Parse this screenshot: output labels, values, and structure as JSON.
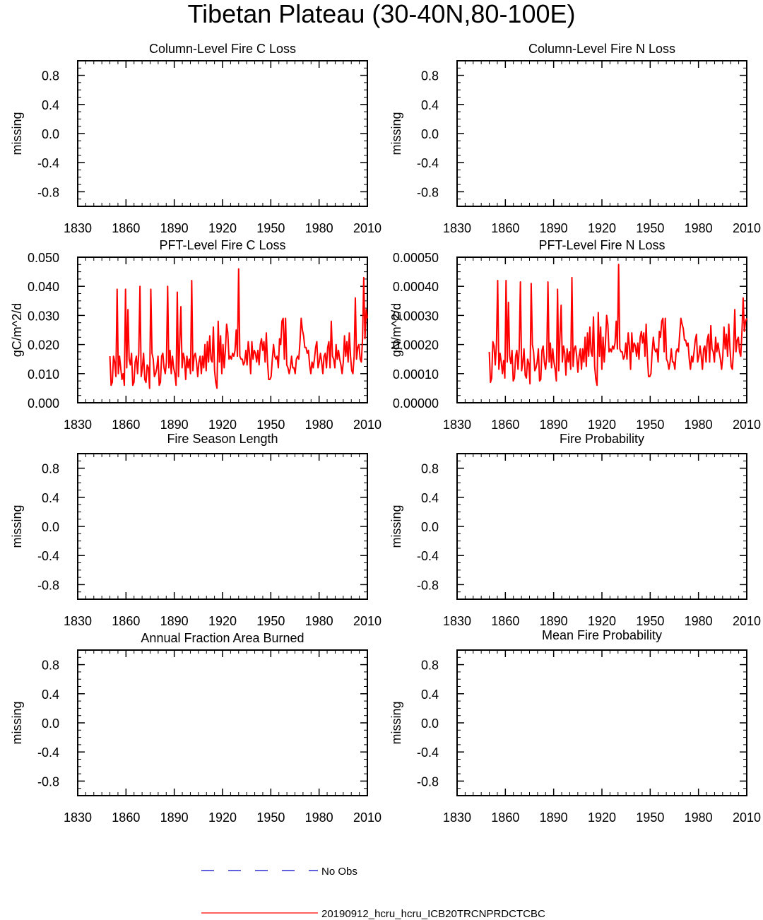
{
  "title": "Tibetan Plateau (30-40N,80-100E)",
  "colors": {
    "model": "#ff0000",
    "obs": "#0000cc",
    "axis": "#000000"
  },
  "legend": {
    "obs_label": "No Obs",
    "model_label": "20190912_hcru_hcru_ICB20TRCNPRDCTCBC"
  },
  "chart_data": [
    {
      "type": "line",
      "title": "Column-Level Fire C Loss",
      "ylabel": "missing",
      "xlabel": "",
      "xlim": [
        1830,
        2010
      ],
      "ylim": [
        -1,
        1
      ],
      "xticks": [
        "1830",
        "1860",
        "1890",
        "1920",
        "1950",
        "1980",
        "2010"
      ],
      "yticks": [
        "0.8",
        "0.4",
        "0.0",
        "-0.4",
        "-0.8"
      ],
      "series": []
    },
    {
      "type": "line",
      "title": "Column-Level Fire N Loss",
      "ylabel": "missing",
      "xlabel": "",
      "xlim": [
        1830,
        2010
      ],
      "ylim": [
        -1,
        1
      ],
      "xticks": [
        "1830",
        "1860",
        "1890",
        "1920",
        "1950",
        "1980",
        "2010"
      ],
      "yticks": [
        "0.8",
        "0.4",
        "0.0",
        "-0.4",
        "-0.8"
      ],
      "series": []
    },
    {
      "type": "line",
      "title": "PFT-Level Fire C Loss",
      "ylabel": "gC/m^2/d",
      "xlabel": "",
      "xlim": [
        1830,
        2010
      ],
      "ylim": [
        0,
        0.05
      ],
      "xticks": [
        "1830",
        "1860",
        "1890",
        "1920",
        "1950",
        "1980",
        "2010"
      ],
      "yticks": [
        "0.050",
        "0.040",
        "0.030",
        "0.020",
        "0.010",
        "0.000"
      ],
      "x_start": 1850,
      "series": [
        {
          "name": "20190912_hcru_hcru_ICB20TRCNPRDCTCBC",
          "values": [
            0.016,
            0.006,
            0.007,
            0.016,
            0.014,
            0.009,
            0.039,
            0.01,
            0.016,
            0.012,
            0.008,
            0.01,
            0.006,
            0.039,
            0.012,
            0.032,
            0.015,
            0.013,
            0.017,
            0.006,
            0.007,
            0.014,
            0.016,
            0.01,
            0.017,
            0.04,
            0.009,
            0.012,
            0.017,
            0.008,
            0.007,
            0.013,
            0.012,
            0.005,
            0.039,
            0.017,
            0.015,
            0.009,
            0.01,
            0.012,
            0.016,
            0.006,
            0.007,
            0.016,
            0.017,
            0.012,
            0.01,
            0.014,
            0.04,
            0.012,
            0.018,
            0.01,
            0.016,
            0.012,
            0.01,
            0.006,
            0.038,
            0.009,
            0.02,
            0.033,
            0.012,
            0.017,
            0.015,
            0.008,
            0.016,
            0.012,
            0.015,
            0.01,
            0.042,
            0.011,
            0.016,
            0.017,
            0.014,
            0.009,
            0.014,
            0.016,
            0.01,
            0.016,
            0.012,
            0.02,
            0.011,
            0.021,
            0.014,
            0.023,
            0.015,
            0.014,
            0.026,
            0.011,
            0.007,
            0.005,
            0.028,
            0.014,
            0.023,
            0.01,
            0.02,
            0.012,
            0.018,
            0.027,
            0.024,
            0.015,
            0.016,
            0.015,
            0.017,
            0.016,
            0.018,
            0.025,
            0.016,
            0.046,
            0.016,
            0.015,
            0.015,
            0.013,
            0.014,
            0.018,
            0.013,
            0.021,
            0.017,
            0.01,
            0.021,
            0.015,
            0.018,
            0.017,
            0.014,
            0.018,
            0.013,
            0.02,
            0.022,
            0.018,
            0.021,
            0.014,
            0.024,
            0.014,
            0.008,
            0.008,
            0.009,
            0.015,
            0.02,
            0.016,
            0.015,
            0.016,
            0.012,
            0.022,
            0.02,
            0.028,
            0.029,
            0.015,
            0.029,
            0.013,
            0.012,
            0.01,
            0.012,
            0.016,
            0.012,
            0.012,
            0.01,
            0.015,
            0.016,
            0.015,
            0.021,
            0.029,
            0.025,
            0.023,
            0.019,
            0.019,
            0.017,
            0.018,
            0.013,
            0.01,
            0.014,
            0.012,
            0.015,
            0.019,
            0.021,
            0.012,
            0.014,
            0.017,
            0.014,
            0.01,
            0.016,
            0.017,
            0.012,
            0.019,
            0.021,
            0.012,
            0.028,
            0.016,
            0.015,
            0.012,
            0.02,
            0.015,
            0.018,
            0.015,
            0.013,
            0.01,
            0.014,
            0.023,
            0.016,
            0.021,
            0.014,
            0.024,
            0.016,
            0.011,
            0.01,
            0.016,
            0.036,
            0.015,
            0.019,
            0.02,
            0.015,
            0.014,
            0.022,
            0.043,
            0.022,
            0.032,
            0.029
          ]
        }
      ]
    },
    {
      "type": "line",
      "title": "PFT-Level Fire N Loss",
      "ylabel": "gN/m^2/d",
      "xlabel": "",
      "xlim": [
        1830,
        2010
      ],
      "ylim": [
        0,
        0.0005
      ],
      "xticks": [
        "1830",
        "1860",
        "1890",
        "1920",
        "1950",
        "1980",
        "2010"
      ],
      "yticks": [
        "0.00050",
        "0.00040",
        "0.00030",
        "0.00020",
        "0.00010",
        "0.00000"
      ],
      "x_start": 1850,
      "series": [
        {
          "name": "20190912_hcru_hcru_ICB20TRCNPRDCTCBC",
          "values": [
            0.000175,
            7e-05,
            8.5e-05,
            0.00021,
            0.000195,
            0.00013,
            0.0002,
            0.00042,
            0.000115,
            0.00017,
            0.00014,
            0.0001,
            0.000145,
            8.5e-05,
            0.00042,
            0.00014,
            0.000345,
            0.00016,
            0.000135,
            0.00018,
            7.5e-05,
            8.5e-05,
            0.00016,
            0.00018,
            0.000115,
            0.000185,
            0.000415,
            0.00011,
            0.00014,
            0.000185,
            9.5e-05,
            8.5e-05,
            0.00015,
            0.000135,
            6.5e-05,
            0.00041,
            0.0002,
            0.000175,
            0.00011,
            0.00012,
            0.00014,
            0.000185,
            7.5e-05,
            8e-05,
            0.00018,
            0.000195,
            0.00014,
            0.000115,
            0.00016,
            0.000415,
            0.00014,
            0.000205,
            0.00012,
            0.000185,
            0.00014,
            0.000115,
            7.5e-05,
            0.00039,
            0.00011,
            0.000225,
            0.000335,
            0.00014,
            0.000195,
            0.00017,
            9.5e-05,
            0.000185,
            0.00014,
            0.000175,
            0.000115,
            0.00043,
            0.000125,
            0.000185,
            0.000195,
            0.00016,
            0.000105,
            0.00016,
            0.000185,
            0.000115,
            0.000185,
            0.00014,
            0.000225,
            0.000125,
            0.00024,
            0.00016,
            0.00026,
            0.000175,
            0.00016,
            0.000295,
            0.000125,
            8e-05,
            6e-05,
            0.00031,
            0.00016,
            0.00026,
            0.000115,
            0.000225,
            0.00014,
            0.000205,
            0.0003,
            0.00027,
            0.000175,
            0.000185,
            0.000175,
            0.000195,
            0.000185,
            0.000205,
            0.00028,
            0.000185,
            0.000475,
            0.000185,
            0.000175,
            0.000175,
            0.00015,
            0.00016,
            0.000205,
            0.00015,
            0.00024,
            0.000195,
            0.000115,
            0.00024,
            0.000175,
            0.000205,
            0.000195,
            0.00016,
            0.000205,
            0.00015,
            0.000225,
            0.000245,
            0.000205,
            0.00024,
            0.00016,
            0.00027,
            0.00016,
            9e-05,
            9e-05,
            0.0001,
            0.000175,
            0.000225,
            0.000185,
            0.000175,
            0.000185,
            0.00014,
            0.000245,
            0.000225,
            0.00028,
            0.00029,
            0.000175,
            0.00029,
            0.00015,
            0.00014,
            0.000115,
            0.00014,
            0.000185,
            0.00014,
            0.00014,
            0.000115,
            0.000175,
            0.000185,
            0.000175,
            0.000235,
            0.00029,
            0.00027,
            0.000255,
            0.000215,
            0.000215,
            0.000195,
            0.000205,
            0.00015,
            0.000115,
            0.00016,
            0.00014,
            0.000175,
            0.000215,
            0.000235,
            0.00014,
            0.00016,
            0.000195,
            0.00016,
            0.000115,
            0.000185,
            0.000195,
            0.00014,
            0.000215,
            0.000235,
            0.00014,
            0.000265,
            0.000185,
            0.000175,
            0.00014,
            0.000225,
            0.000175,
            0.000205,
            0.000175,
            0.00015,
            0.000115,
            0.00016,
            0.00026,
            0.000185,
            0.000235,
            0.00016,
            0.00027,
            0.000185,
            0.000125,
            0.000115,
            0.000185,
            0.00032,
            0.000175,
            0.000215,
            0.000225,
            0.000175,
            0.00016,
            0.000245,
            0.00036,
            0.000245,
            0.00028,
            0.00029
          ]
        }
      ]
    },
    {
      "type": "line",
      "title": "Fire Season Length",
      "ylabel": "missing",
      "xlabel": "",
      "xlim": [
        1830,
        2010
      ],
      "ylim": [
        -1,
        1
      ],
      "xticks": [
        "1830",
        "1860",
        "1890",
        "1920",
        "1950",
        "1980",
        "2010"
      ],
      "yticks": [
        "0.8",
        "0.4",
        "0.0",
        "-0.4",
        "-0.8"
      ],
      "series": []
    },
    {
      "type": "line",
      "title": "Fire Probability",
      "ylabel": "missing",
      "xlabel": "",
      "xlim": [
        1830,
        2010
      ],
      "ylim": [
        -1,
        1
      ],
      "xticks": [
        "1830",
        "1860",
        "1890",
        "1920",
        "1950",
        "1980",
        "2010"
      ],
      "yticks": [
        "0.8",
        "0.4",
        "0.0",
        "-0.4",
        "-0.8"
      ],
      "series": []
    },
    {
      "type": "line",
      "title": "Annual Fraction Area Burned",
      "ylabel": "missing",
      "xlabel": "",
      "xlim": [
        1830,
        2010
      ],
      "ylim": [
        -1,
        1
      ],
      "xticks": [
        "1830",
        "1860",
        "1890",
        "1920",
        "1950",
        "1980",
        "2010"
      ],
      "yticks": [
        "0.8",
        "0.4",
        "0.0",
        "-0.4",
        "-0.8"
      ],
      "series": []
    },
    {
      "type": "line",
      "title": "Mean Fire Probability",
      "ylabel": "missing",
      "xlabel": "",
      "xlim": [
        1830,
        2010
      ],
      "ylim": [
        -1,
        1
      ],
      "xticks": [
        "1830",
        "1860",
        "1890",
        "1920",
        "1950",
        "1980",
        "2010"
      ],
      "yticks": [
        "0.8",
        "0.4",
        "0.0",
        "-0.4",
        "-0.8"
      ],
      "series": []
    }
  ]
}
